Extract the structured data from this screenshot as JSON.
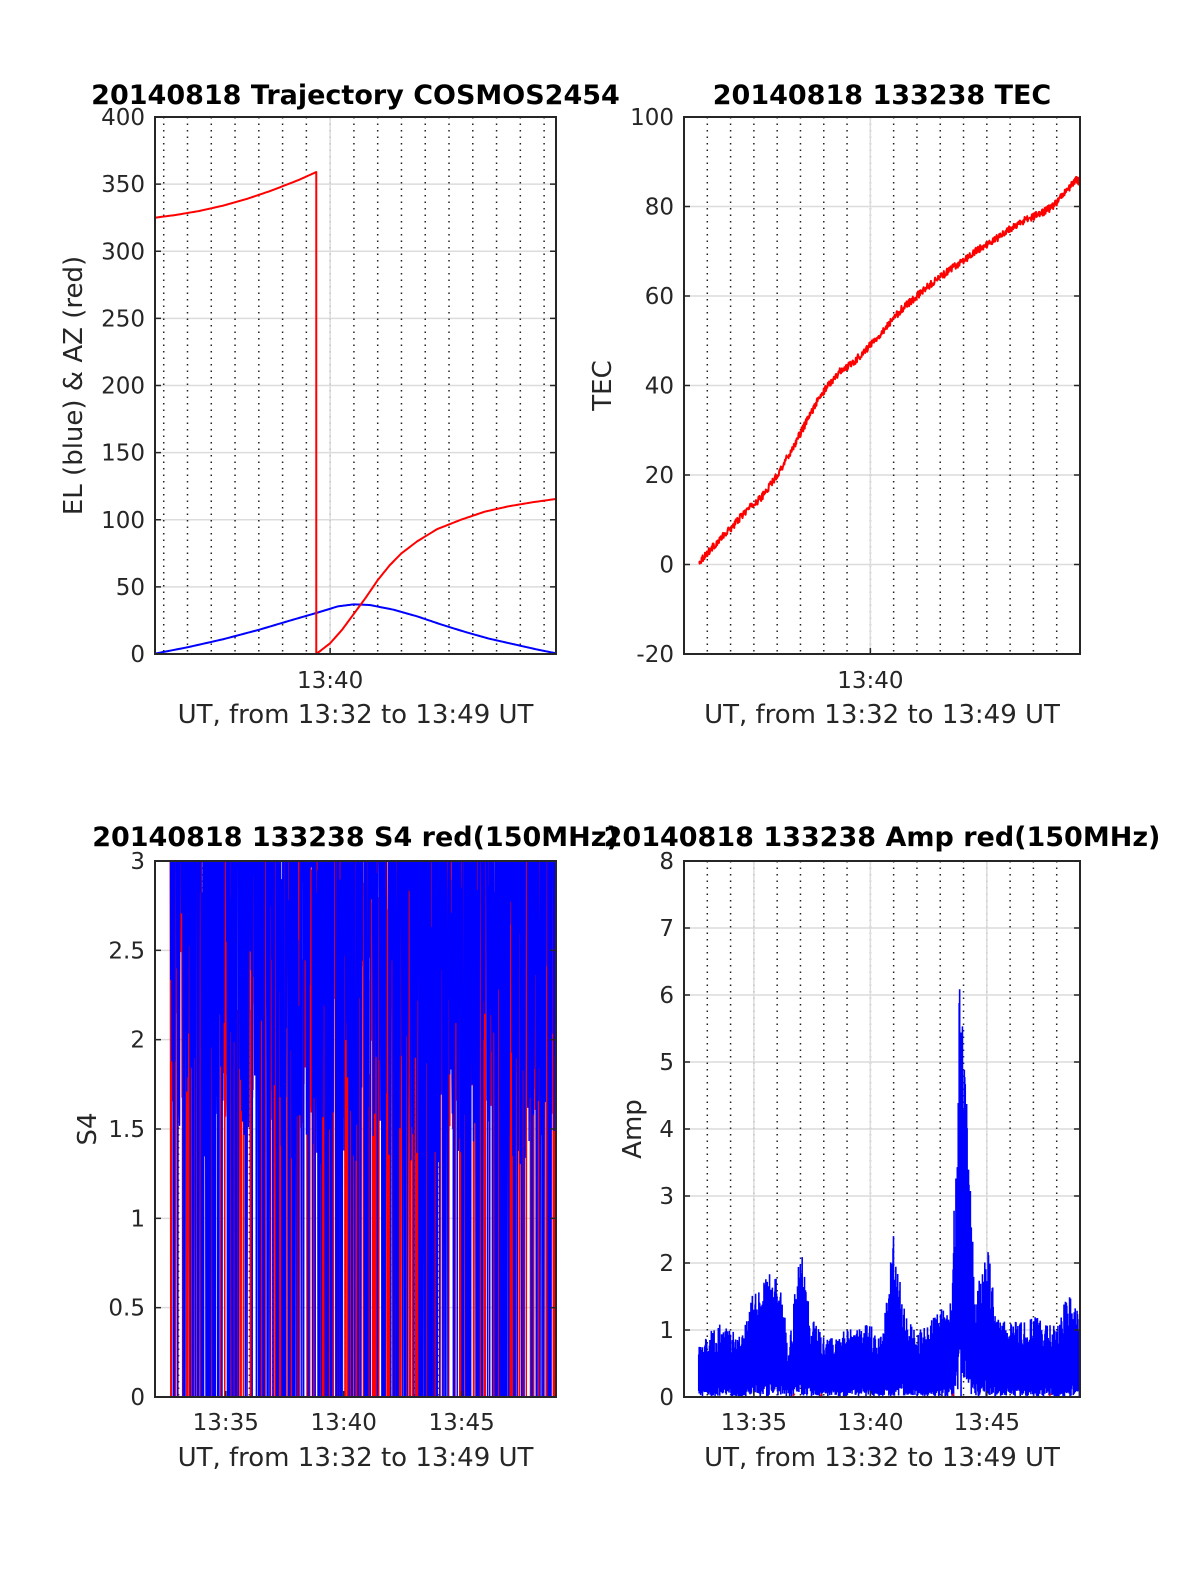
{
  "chart_data": [
    {
      "type": "line",
      "title": "20140818 Trajectory COSMOS2454",
      "xlabel": "UT, from 13:32 to 13:49 UT",
      "ylabel": "EL (blue) & AZ (red)",
      "xlim": [
        "13:32:38",
        "13:49:30"
      ],
      "ylim": [
        0,
        400
      ],
      "yticks": [
        0,
        50,
        100,
        150,
        200,
        250,
        300,
        350,
        400
      ],
      "xtick_labels": [
        {
          "t": "13:40",
          "label": "13:40"
        }
      ],
      "grid": "minor dotted vertical, major horizontal",
      "series": [
        {
          "color": "#0000ff",
          "x": [
            "13:32:38",
            "13:34:00",
            "13:35:30",
            "13:37:00",
            "13:38:20",
            "13:39:30",
            "13:40:20",
            "13:41:00",
            "13:41:40",
            "13:42:40",
            "13:43:40",
            "13:44:40",
            "13:45:40",
            "13:46:40",
            "13:47:40",
            "13:48:40",
            "13:49:30"
          ],
          "y": [
            0.3,
            5,
            11,
            18,
            25,
            31,
            35.5,
            37,
            36.5,
            33,
            28,
            22,
            16.5,
            11.5,
            7.5,
            3.5,
            0.5
          ]
        },
        {
          "color": "#ff0000",
          "x": [
            "13:32:38",
            "13:33:30",
            "13:34:30",
            "13:35:30",
            "13:36:30",
            "13:37:30",
            "13:38:40",
            "13:39:25",
            "13:39:25",
            "13:40:00",
            "13:40:30",
            "13:41:00",
            "13:41:30",
            "13:42:00",
            "13:42:30",
            "13:43:00",
            "13:43:40",
            "13:44:30",
            "13:45:30",
            "13:46:30",
            "13:47:30",
            "13:48:30",
            "13:49:30"
          ],
          "y": [
            325,
            327,
            330,
            334,
            339,
            345,
            353,
            359,
            0,
            8,
            18,
            30,
            42,
            55,
            66,
            75,
            84,
            93,
            100,
            106,
            110,
            113,
            115.5
          ]
        }
      ]
    },
    {
      "type": "line",
      "title": "20140818 133238 TEC",
      "xlabel": "UT, from 13:32 to 13:49 UT",
      "ylabel": "TEC",
      "xlim": [
        "13:32:00",
        "13:49:00"
      ],
      "ylim": [
        -20,
        100
      ],
      "yticks": [
        -20,
        0,
        20,
        40,
        60,
        80,
        100
      ],
      "xtick_labels": [
        {
          "t": "13:40",
          "label": "13:40"
        }
      ],
      "grid": "minor dotted vertical, major horizontal",
      "series": [
        {
          "color": "#ff0000",
          "x": [
            "13:32:38",
            "13:33:15",
            "13:34:00",
            "13:34:40",
            "13:35:20",
            "13:36:00",
            "13:36:40",
            "13:37:10",
            "13:37:40",
            "13:38:10",
            "13:38:40",
            "13:39:20",
            "13:40:00",
            "13:40:40",
            "13:41:20",
            "13:42:00",
            "13:42:40",
            "13:43:20",
            "13:44:00",
            "13:44:40",
            "13:45:20",
            "13:46:00",
            "13:46:40",
            "13:47:20",
            "13:47:50",
            "13:48:20",
            "13:48:50",
            "13:49:00"
          ],
          "y": [
            0.5,
            4,
            8,
            12,
            15,
            20,
            26,
            31,
            36,
            40,
            43,
            45.5,
            49,
            53,
            57,
            60,
            63,
            65.5,
            68,
            70.5,
            72.5,
            75,
            77,
            78.5,
            80,
            83,
            86,
            85.5
          ]
        }
      ]
    },
    {
      "type": "line",
      "title": "20140818 133238 S4 red(150MHz)",
      "xlabel": "UT, from 13:32 to 13:49 UT",
      "ylabel": "S4",
      "xlim": [
        "13:32:00",
        "13:49:00"
      ],
      "ylim": [
        0,
        3
      ],
      "yticks": [
        0,
        0.5,
        1,
        1.5,
        2,
        2.5,
        3
      ],
      "xtick_labels": [
        {
          "t": "13:35",
          "label": "13:35"
        },
        {
          "t": "13:40",
          "label": "13:40"
        },
        {
          "t": "13:45",
          "label": "13:45"
        }
      ],
      "grid": "minor dotted vertical, major horizontal",
      "series": [
        {
          "color": "#ff0000",
          "x_range": [
            "13:32:38",
            "13:49:00"
          ],
          "y_range": [
            0,
            3
          ]
        },
        {
          "color": "#0000ff",
          "x_range": [
            "13:32:38",
            "13:49:00"
          ],
          "y_range": [
            0,
            3
          ]
        }
      ]
    },
    {
      "type": "line",
      "title": "20140818 133238 Amp red(150MHz)",
      "xlabel": "UT, from 13:32 to 13:49 UT",
      "ylabel": "Amp",
      "xlim": [
        "13:32:00",
        "13:49:00"
      ],
      "ylim": [
        0,
        8
      ],
      "yticks": [
        0,
        1,
        2,
        3,
        4,
        5,
        6,
        7,
        8
      ],
      "xtick_labels": [
        {
          "t": "13:35",
          "label": "13:35"
        },
        {
          "t": "13:40",
          "label": "13:40"
        },
        {
          "t": "13:45",
          "label": "13:45"
        }
      ],
      "grid": "minor dotted vertical, major horizontal",
      "series": [
        {
          "color": "#0000ff",
          "x": [
            "13:32:38",
            "13:33:30",
            "13:34:30",
            "13:35:00",
            "13:35:30",
            "13:36:00",
            "13:36:30",
            "13:37:00",
            "13:37:30",
            "13:38:00",
            "13:39:00",
            "13:40:00",
            "13:40:30",
            "13:41:00",
            "13:41:30",
            "13:42:00",
            "13:42:30",
            "13:43:00",
            "13:43:30",
            "13:43:50",
            "13:44:10",
            "13:44:30",
            "13:45:00",
            "13:45:30",
            "13:46:00",
            "13:47:00",
            "13:48:00",
            "13:48:30",
            "13:49:00"
          ],
          "y": [
            0.8,
            1.1,
            0.9,
            1.7,
            1.8,
            2.0,
            0.8,
            2.3,
            1.2,
            0.9,
            1.0,
            1.1,
            0.9,
            2.5,
            1.2,
            1.0,
            1.1,
            1.3,
            1.5,
            6.3,
            4.5,
            1.5,
            2.3,
            1.2,
            1.1,
            1.2,
            1.1,
            1.6,
            1.2
          ]
        }
      ]
    }
  ]
}
